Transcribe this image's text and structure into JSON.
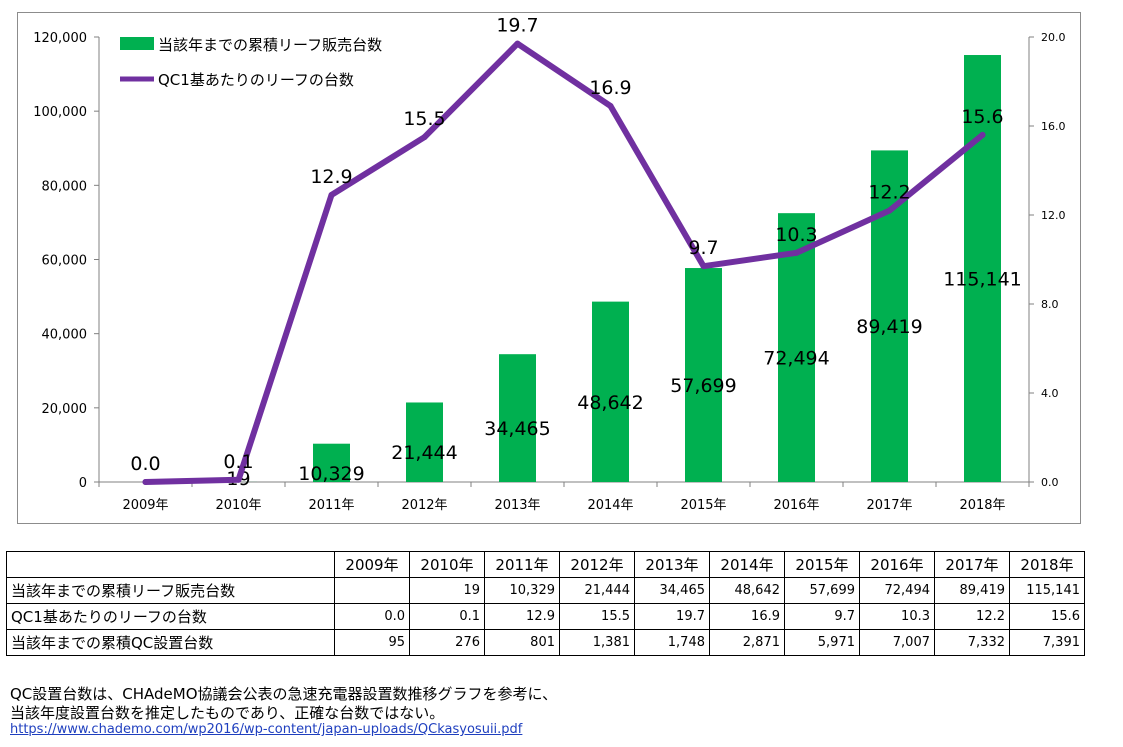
{
  "chart_data": {
    "type": "bar+line",
    "categories": [
      "2009年",
      "2010年",
      "2011年",
      "2012年",
      "2013年",
      "2014年",
      "2015年",
      "2016年",
      "2017年",
      "2018年"
    ],
    "bar_series": {
      "name": "当該年までの累積リーフ販売台数",
      "values": [
        null,
        19,
        10329,
        21444,
        34465,
        48642,
        57699,
        72494,
        89419,
        115141
      ],
      "labels": [
        "",
        "19",
        "10,329",
        "21,444",
        "34,465",
        "48,642",
        "57,699",
        "72,494",
        "89,419",
        "115,141"
      ],
      "color": "#00b050",
      "axis": "left"
    },
    "line_series": {
      "name": "QC1基あたりのリーフの台数",
      "values": [
        0.0,
        0.1,
        12.9,
        15.5,
        19.7,
        16.9,
        9.7,
        10.3,
        12.2,
        15.6
      ],
      "labels": [
        "0.0",
        "0.1",
        "12.9",
        "15.5",
        "19.7",
        "16.9",
        "9.7",
        "10.3",
        "12.2",
        "15.6"
      ],
      "color": "#7030a0",
      "axis": "right"
    },
    "left_axis": {
      "min": 0,
      "max": 120000,
      "ticks": [
        "0",
        "20,000",
        "40,000",
        "60,000",
        "80,000",
        "100,000",
        "120,000"
      ]
    },
    "right_axis": {
      "min": 0,
      "max": 20,
      "ticks": [
        "0.0",
        "4.0",
        "8.0",
        "12.0",
        "16.0",
        "20.0"
      ]
    },
    "legend_position": "top-left",
    "grid": false
  },
  "table": {
    "headers": [
      "",
      "2009年",
      "2010年",
      "2011年",
      "2012年",
      "2013年",
      "2014年",
      "2015年",
      "2016年",
      "2017年",
      "2018年"
    ],
    "rows": [
      {
        "label": "当該年までの累積リーフ販売台数",
        "cells": [
          "",
          "19",
          "10,329",
          "21,444",
          "34,465",
          "48,642",
          "57,699",
          "72,494",
          "89,419",
          "115,141"
        ]
      },
      {
        "label": "QC1基あたりのリーフの台数",
        "cells": [
          "0.0",
          "0.1",
          "12.9",
          "15.5",
          "19.7",
          "16.9",
          "9.7",
          "10.3",
          "12.2",
          "15.6"
        ]
      },
      {
        "label": "当該年までの累積QC設置台数",
        "cells": [
          "95",
          "276",
          "801",
          "1,381",
          "1,748",
          "2,871",
          "5,971",
          "7,007",
          "7,332",
          "7,391"
        ]
      }
    ]
  },
  "notes": {
    "line1": "QC設置台数は、CHAdeMO協議会公表の急速充電器設置数推移グラフを参考に、",
    "line2": "当該年度設置台数を推定したものであり、正確な台数ではない。",
    "link": "https://www.chademo.com/wp2016/wp-content/japan-uploads/QCkasyosuii.pdf"
  }
}
